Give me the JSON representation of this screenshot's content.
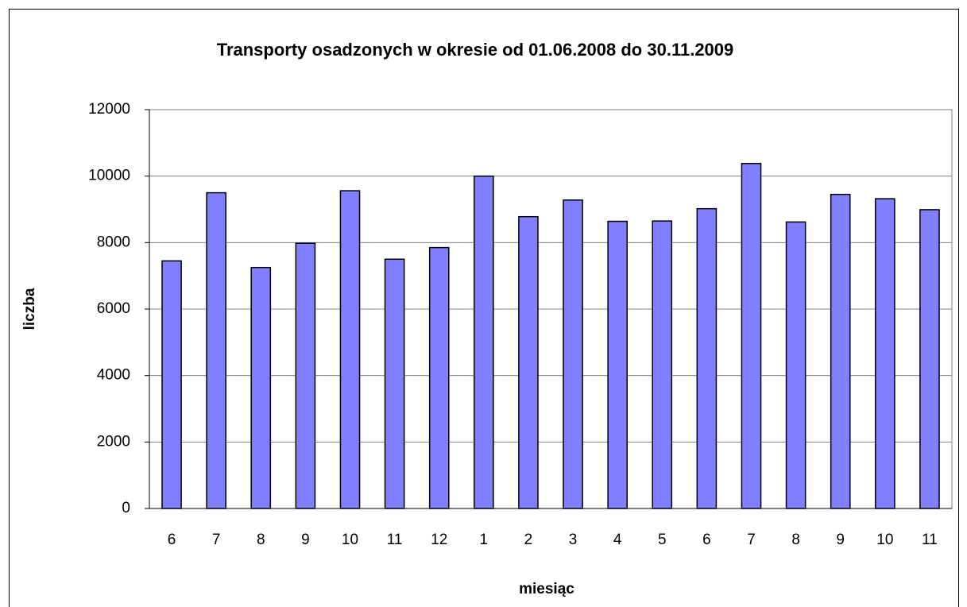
{
  "chart_data": {
    "type": "bar",
    "title": "Transporty osadzonych w okresie od 01.06.2008 do 30.11.2009",
    "x_label": "miesiąc",
    "y_label": "liczba",
    "categories": [
      "6",
      "7",
      "8",
      "9",
      "10",
      "11",
      "12",
      "1",
      "2",
      "3",
      "4",
      "5",
      "6",
      "7",
      "8",
      "9",
      "10",
      "11"
    ],
    "values": [
      7450,
      9500,
      7250,
      7980,
      9560,
      7500,
      7850,
      10000,
      8780,
      9280,
      8640,
      8650,
      9020,
      10380,
      8620,
      9450,
      9320,
      8990
    ],
    "color": "#8080ff",
    "ylim": [
      0,
      12000
    ],
    "yticks": [
      0,
      2000,
      4000,
      6000,
      8000,
      10000,
      12000
    ],
    "grid": true
  }
}
